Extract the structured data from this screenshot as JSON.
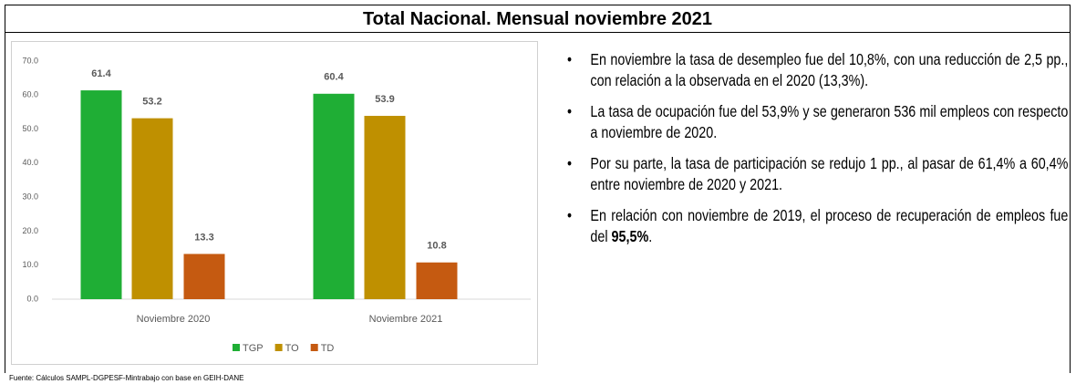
{
  "header": {
    "title": "Total Nacional. Mensual noviembre 2021"
  },
  "chart_data": {
    "type": "bar",
    "categories": [
      "Noviembre 2020",
      "Noviembre 2021"
    ],
    "series": [
      {
        "name": "TGP",
        "color": "#1fae35",
        "values": [
          61.4,
          60.4
        ]
      },
      {
        "name": "TO",
        "color": "#bf9000",
        "values": [
          53.2,
          53.9
        ]
      },
      {
        "name": "TD",
        "color": "#c55a11",
        "values": [
          13.3,
          10.8
        ]
      }
    ],
    "ylim": [
      0,
      70
    ],
    "yticks": [
      {
        "value": 0,
        "label": "0.0"
      },
      {
        "value": 10,
        "label": "10.0"
      },
      {
        "value": 20,
        "label": "20.0"
      },
      {
        "value": 30,
        "label": "30.0"
      },
      {
        "value": 40,
        "label": "40.0"
      },
      {
        "value": 50,
        "label": "50.0"
      },
      {
        "value": 60,
        "label": "60.0"
      },
      {
        "value": 70,
        "label": "70.0"
      }
    ],
    "grid": false,
    "legend": "bottom"
  },
  "bullets": [
    {
      "text": "En noviembre la tasa de desempleo fue del 10,8%, con una reducción de 2,5 pp., con relación a la observada en el 2020 (13,3%)."
    },
    {
      "text": "La tasa de ocupación fue del 53,9% y se generaron 536 mil empleos con respecto a noviembre de 2020."
    },
    {
      "text": "Por su parte, la tasa de participación se redujo 1 pp., al pasar de 61,4% a 60,4% entre noviembre de 2020 y 2021."
    },
    {
      "text": "En relación con noviembre de 2019, el proceso de recuperación de empleos fue del ",
      "bold": "95,5%",
      "tail": "."
    }
  ],
  "source": "Fuente: Cálculos SAMPL-DGPESF-Mintrabajo con base en GEIH-DANE"
}
